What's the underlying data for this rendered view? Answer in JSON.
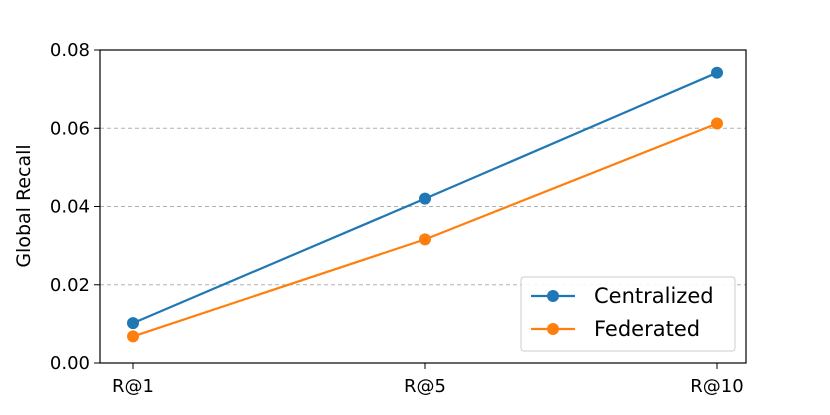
{
  "chart_data": {
    "type": "line",
    "title": "",
    "xlabel": "",
    "ylabel": "Global Recall",
    "categories": [
      "R@1",
      "R@5",
      "R@10"
    ],
    "ylim": [
      0,
      0.08
    ],
    "yticks": [
      "0.00",
      "0.02",
      "0.04",
      "0.06",
      "0.08"
    ],
    "ytick_values": [
      0,
      0.02,
      0.04,
      0.06,
      0.08
    ],
    "grid": "horizontal-dashed",
    "legend_position": "lower-right",
    "series": [
      {
        "name": "Centralized",
        "color": "#1f77b4",
        "values": [
          0.0102,
          0.042,
          0.0742
        ]
      },
      {
        "name": "Federated",
        "color": "#ff7f0e",
        "values": [
          0.0068,
          0.0316,
          0.0612
        ]
      }
    ]
  }
}
